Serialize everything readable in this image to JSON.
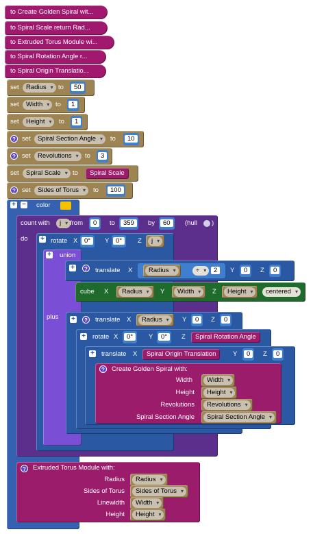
{
  "headers": [
    "to Create Golden Spiral wit...",
    "to Spiral Scale  return Rad...",
    "to Extruded Torus Module wi...",
    "to Spiral Rotation Angle  r...",
    "to Spiral Origin Translatio..."
  ],
  "sets": [
    {
      "set": "set",
      "var": "Radius",
      "to": "to",
      "value": "50"
    },
    {
      "set": "set",
      "var": "Width",
      "to": "to",
      "value": "1"
    },
    {
      "set": "set",
      "var": "Height",
      "to": "to",
      "value": "1"
    },
    {
      "set": "set",
      "var": "Spiral Section Angle",
      "to": "to",
      "value": "10"
    },
    {
      "set": "set",
      "var": "Revolutions",
      "to": "to",
      "value": "3"
    },
    {
      "set": "set",
      "var": "Spiral Scale",
      "to": "to",
      "value": "Spiral Scale"
    },
    {
      "set": "set",
      "var": "Sides of Torus",
      "to": "to",
      "value": "100"
    }
  ],
  "color_block": {
    "label": "color",
    "swatch": "#f6c200"
  },
  "count": {
    "label": "count with",
    "var": "j",
    "from": "from",
    "from_val": "0",
    "to": "to",
    "to_val": "359",
    "by": "by",
    "by_val": "60",
    "hull": "(hull",
    "close": ")",
    "do": "do"
  },
  "rotate1": {
    "label": "rotate",
    "x": "X",
    "x_val": "0°",
    "y": "Y",
    "y_val": "0°",
    "z": "Z",
    "z_var": "j"
  },
  "union": {
    "label": "union",
    "plus": "plus"
  },
  "translate1": {
    "label": "translate",
    "x": "X",
    "var": "Radius",
    "op": "÷",
    "div": "2",
    "y": "Y",
    "y_val": "0",
    "z": "Z",
    "z_val": "0"
  },
  "cube": {
    "label": "cube",
    "x": "X",
    "x_var": "Radius",
    "y": "Y",
    "y_var": "Width",
    "z": "Z",
    "z_var": "Height",
    "centered": "centered"
  },
  "translate2": {
    "label": "translate",
    "x": "X",
    "var": "Radius",
    "y": "Y",
    "y_val": "0",
    "z": "Z",
    "z_val": "0"
  },
  "rotate2": {
    "label": "rotate",
    "x": "X",
    "x_val": "0°",
    "y": "Y",
    "y_val": "0°",
    "z": "Z",
    "z_call": "Spiral Rotation Angle"
  },
  "translate3": {
    "label": "translate",
    "x": "X",
    "x_call": "Spiral Origin Translation",
    "y": "Y",
    "y_val": "0",
    "z": "Z",
    "z_val": "0"
  },
  "golden": {
    "label": "Create Golden Spiral  with:",
    "params": [
      {
        "name": "Width",
        "var": "Width"
      },
      {
        "name": "Height",
        "var": "Height"
      },
      {
        "name": "Revolutions",
        "var": "Revolutions"
      },
      {
        "name": "Spiral Section Angle",
        "var": "Spiral Section Angle"
      }
    ]
  },
  "torus": {
    "label": "Extruded Torus Module  with:",
    "params": [
      {
        "name": "Radius",
        "var": "Radius"
      },
      {
        "name": "Sides of Torus",
        "var": "Sides of Torus"
      },
      {
        "name": "Linewidth",
        "var": "Width"
      },
      {
        "name": "Height",
        "var": "Height"
      }
    ]
  },
  "colors": {
    "procedure": "#9b1c6b",
    "variable": "#9d8452",
    "control": "#2a58a2",
    "union": "#7a4fd6",
    "cube": "#1f6b2c"
  }
}
